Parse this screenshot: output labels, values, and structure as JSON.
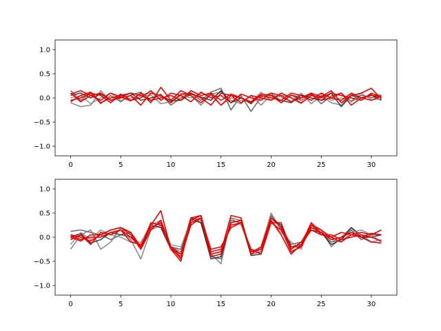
{
  "chart_data": [
    {
      "type": "line",
      "title": "",
      "xlabel": "",
      "ylabel": "",
      "xlim": [
        -1.55,
        32.55
      ],
      "ylim": [
        -1.2,
        1.2
      ],
      "xticks": [
        0,
        5,
        10,
        15,
        20,
        25,
        30
      ],
      "yticks": [
        -1.0,
        -0.5,
        0.0,
        0.5,
        1.0
      ],
      "xtick_labels": [
        "0",
        "5",
        "10",
        "15",
        "20",
        "25",
        "30"
      ],
      "ytick_labels": [
        "−1.0",
        "−0.5",
        "0.0",
        "0.5",
        "1.0"
      ],
      "grid": false,
      "x": [
        0,
        1,
        2,
        3,
        4,
        5,
        6,
        7,
        8,
        9,
        10,
        11,
        12,
        13,
        14,
        15,
        16,
        17,
        18,
        19,
        20,
        21,
        22,
        23,
        24,
        25,
        26,
        27,
        28,
        29,
        30,
        31
      ],
      "series": [
        {
          "color": "#555555",
          "values": [
            0.15,
            -0.05,
            0.1,
            -0.12,
            0.05,
            -0.08,
            0.06,
            0.12,
            -0.05,
            0.08,
            -0.15,
            0.0,
            0.1,
            -0.05,
            0.12,
            0.2,
            -0.25,
            0.05,
            -0.28,
            0.02,
            0.1,
            -0.1,
            0.06,
            -0.05,
            0.08,
            -0.12,
            0.04,
            0.1,
            -0.08,
            0.06,
            0.0,
            0.05
          ]
        },
        {
          "color": "#777777",
          "values": [
            -0.1,
            -0.18,
            -0.15,
            0.15,
            -0.06,
            0.08,
            -0.05,
            0.04,
            0.06,
            -0.12,
            -0.08,
            0.08,
            0.05,
            -0.15,
            0.08,
            0.12,
            -0.05,
            -0.12,
            0.05,
            -0.15,
            0.06,
            0.02,
            -0.08,
            0.1,
            -0.12,
            0.05,
            -0.1,
            -0.15,
            0.08,
            -0.05,
            0.08,
            0.06
          ]
        },
        {
          "color": "#222222",
          "values": [
            0.05,
            0.1,
            0.0,
            0.08,
            -0.05,
            0.02,
            0.1,
            -0.05,
            0.0,
            0.05,
            -0.06,
            -0.05,
            0.08,
            0.02,
            -0.05,
            0.15,
            -0.1,
            0.0,
            -0.12,
            0.08,
            0.05,
            -0.05,
            -0.1,
            0.06,
            0.0,
            -0.05,
            0.1,
            -0.18,
            0.05,
            0.0,
            0.06,
            -0.05
          ]
        },
        {
          "color": "#888888",
          "values": [
            0.0,
            0.05,
            -0.12,
            0.0,
            0.1,
            -0.05,
            0.0,
            0.08,
            0.1,
            0.02,
            -0.1,
            0.05,
            0.0,
            0.1,
            0.05,
            -0.15,
            0.0,
            -0.05,
            -0.08,
            0.12,
            -0.05,
            0.06,
            0.0,
            -0.12,
            0.05,
            0.08,
            -0.05,
            0.0,
            -0.06,
            0.1,
            -0.04,
            -0.02
          ]
        },
        {
          "color": "#ee0000",
          "values": [
            0.08,
            0.15,
            0.05,
            -0.05,
            0.1,
            0.02,
            -0.06,
            0.1,
            -0.1,
            0.22,
            -0.05,
            0.15,
            0.05,
            -0.1,
            0.08,
            -0.15,
            0.05,
            0.0,
            -0.08,
            0.08,
            0.05,
            -0.1,
            0.06,
            0.0,
            0.1,
            0.02,
            0.15,
            -0.1,
            0.05,
            0.1,
            0.2,
            -0.02
          ]
        },
        {
          "color": "#ee0000",
          "values": [
            -0.05,
            0.0,
            0.1,
            0.05,
            -0.1,
            0.08,
            -0.05,
            0.0,
            0.15,
            -0.05,
            0.1,
            0.05,
            -0.08,
            0.12,
            0.0,
            0.05,
            -0.1,
            0.08,
            0.0,
            -0.05,
            0.1,
            0.05,
            -0.08,
            0.0,
            0.08,
            -0.05,
            0.0,
            0.1,
            -0.15,
            0.0,
            0.05,
            0.02
          ]
        },
        {
          "color": "#ee0000",
          "values": [
            0.1,
            -0.08,
            0.05,
            0.1,
            -0.05,
            0.0,
            0.05,
            -0.15,
            0.1,
            0.05,
            -0.1,
            0.08,
            0.1,
            0.0,
            -0.15,
            0.1,
            0.05,
            -0.1,
            0.05,
            0.0,
            -0.05,
            0.1,
            0.0,
            -0.1,
            0.05,
            0.0,
            0.1,
            0.05,
            0.0,
            -0.05,
            0.1,
            0.0
          ]
        },
        {
          "color": "#ee0000",
          "values": [
            -0.08,
            0.05,
            0.12,
            -0.1,
            0.0,
            0.05,
            0.1,
            0.05,
            -0.05,
            0.0,
            0.05,
            -0.05,
            0.15,
            0.05,
            0.1,
            -0.05,
            0.08,
            0.0,
            -0.1,
            0.05,
            0.0,
            -0.05,
            0.1,
            0.05,
            -0.05,
            0.1,
            0.0,
            -0.05,
            0.1,
            0.0,
            -0.05,
            0.04
          ]
        }
      ]
    },
    {
      "type": "line",
      "title": "",
      "xlabel": "",
      "ylabel": "",
      "xlim": [
        -1.55,
        32.55
      ],
      "ylim": [
        -1.2,
        1.2
      ],
      "xticks": [
        0,
        5,
        10,
        15,
        20,
        25,
        30
      ],
      "yticks": [
        -1.0,
        -0.5,
        0.0,
        0.5,
        1.0
      ],
      "xtick_labels": [
        "0",
        "5",
        "10",
        "15",
        "20",
        "25",
        "30"
      ],
      "ytick_labels": [
        "−1.0",
        "−0.5",
        "0.0",
        "0.5",
        "1.0"
      ],
      "grid": false,
      "x": [
        0,
        1,
        2,
        3,
        4,
        5,
        6,
        7,
        8,
        9,
        10,
        11,
        12,
        13,
        14,
        15,
        16,
        17,
        18,
        19,
        20,
        21,
        22,
        23,
        24,
        25,
        26,
        27,
        28,
        29,
        30,
        31
      ],
      "series": [
        {
          "color": "#555555",
          "values": [
            0.12,
            0.15,
            0.1,
            0.05,
            -0.05,
            0.05,
            0.0,
            -0.2,
            0.2,
            0.3,
            -0.2,
            -0.25,
            0.4,
            0.35,
            -0.4,
            -0.45,
            0.35,
            0.3,
            -0.35,
            -0.3,
            0.45,
            0.2,
            -0.15,
            -0.1,
            0.25,
            0.1,
            -0.1,
            -0.05,
            0.15,
            -0.05,
            0.05,
            0.05
          ]
        },
        {
          "color": "#777777",
          "values": [
            -0.25,
            0.05,
            0.15,
            -0.25,
            -0.1,
            0.2,
            -0.05,
            -0.45,
            0.15,
            0.25,
            -0.2,
            -0.3,
            0.35,
            0.3,
            -0.35,
            -0.55,
            0.4,
            0.35,
            -0.3,
            -0.2,
            0.5,
            0.15,
            -0.3,
            -0.2,
            0.2,
            0.15,
            -0.2,
            0.0,
            0.2,
            0.05,
            -0.1,
            -0.05
          ]
        },
        {
          "color": "#222222",
          "values": [
            0.0,
            0.08,
            -0.12,
            -0.05,
            0.1,
            0.05,
            0.1,
            -0.25,
            0.25,
            0.2,
            -0.25,
            -0.35,
            0.4,
            0.3,
            -0.45,
            -0.4,
            0.3,
            0.35,
            -0.38,
            -0.35,
            0.4,
            0.25,
            -0.2,
            -0.15,
            0.15,
            0.1,
            -0.15,
            -0.05,
            0.2,
            0.0,
            0.0,
            0.05
          ]
        },
        {
          "color": "#888888",
          "values": [
            -0.15,
            0.1,
            -0.05,
            0.15,
            0.05,
            0.0,
            -0.1,
            -0.1,
            0.25,
            0.35,
            -0.15,
            -0.2,
            0.35,
            0.4,
            -0.35,
            -0.3,
            0.4,
            0.25,
            -0.25,
            -0.3,
            0.35,
            0.1,
            -0.1,
            -0.25,
            0.3,
            0.15,
            -0.05,
            -0.1,
            0.1,
            0.15,
            0.05,
            -0.1
          ]
        },
        {
          "color": "#ee0000",
          "values": [
            0.05,
            0.0,
            -0.08,
            0.05,
            0.15,
            0.2,
            0.1,
            -0.2,
            0.25,
            0.55,
            -0.25,
            -0.5,
            0.4,
            0.45,
            -0.3,
            -0.25,
            0.25,
            0.3,
            -0.3,
            -0.25,
            0.35,
            0.05,
            -0.35,
            -0.15,
            0.3,
            0.05,
            0.0,
            0.1,
            0.05,
            0.1,
            0.05,
            0.15
          ]
        },
        {
          "color": "#ee0000",
          "values": [
            -0.05,
            0.05,
            -0.15,
            0.1,
            0.05,
            0.15,
            -0.1,
            -0.15,
            0.2,
            0.3,
            -0.2,
            -0.45,
            0.3,
            0.4,
            -0.25,
            -0.2,
            0.2,
            0.3,
            -0.25,
            -0.35,
            0.3,
            0.3,
            -0.25,
            -0.1,
            0.15,
            0.05,
            0.05,
            -0.05,
            0.0,
            0.05,
            0.0,
            -0.08
          ]
        },
        {
          "color": "#ee0000",
          "values": [
            0.0,
            -0.08,
            0.05,
            0.05,
            0.15,
            0.2,
            0.05,
            -0.25,
            0.15,
            0.35,
            -0.25,
            -0.4,
            0.25,
            0.4,
            -0.35,
            -0.3,
            0.45,
            0.4,
            -0.35,
            -0.2,
            0.4,
            0.2,
            -0.3,
            -0.2,
            0.25,
            0.15,
            0.0,
            -0.1,
            0.05,
            0.0,
            0.08,
            0.05
          ]
        },
        {
          "color": "#ee0000",
          "values": [
            0.03,
            -0.05,
            0.0,
            0.0,
            0.1,
            0.15,
            0.0,
            -0.2,
            0.3,
            0.25,
            -0.2,
            -0.35,
            0.35,
            0.45,
            -0.4,
            -0.35,
            0.3,
            0.35,
            -0.3,
            -0.25,
            0.3,
            0.15,
            -0.2,
            -0.2,
            0.2,
            0.1,
            -0.05,
            0.0,
            0.1,
            0.0,
            -0.1,
            -0.12
          ]
        }
      ]
    }
  ]
}
